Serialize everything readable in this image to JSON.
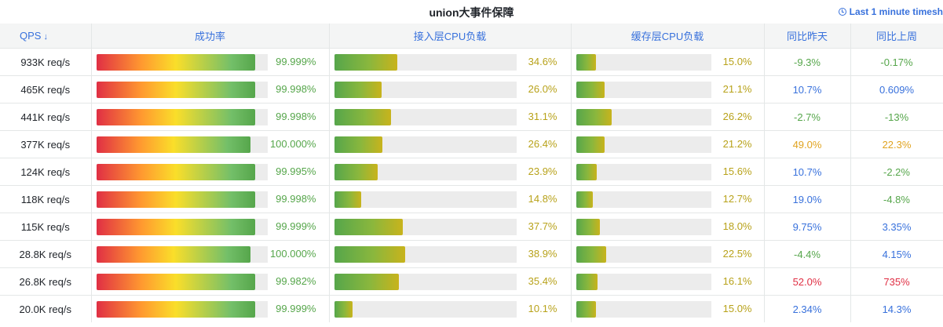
{
  "panel": {
    "title": "union大事件保障",
    "time_range": "Last 1 minute timesh"
  },
  "columns": {
    "qps": "QPS",
    "success": "成功率",
    "ingress_cpu": "接入层CPU负载",
    "cache_cpu": "缓存层CPU负载",
    "dod": "同比昨天",
    "wow": "同比上周"
  },
  "colors": {
    "accent": "#3871dc",
    "value_green": "#56a64b",
    "value_olive": "#b8a21a",
    "status_red": "#e02f44",
    "status_orange": "#e0a31f",
    "status_blue": "#3871dc",
    "status_green": "#56a64b"
  },
  "rows": [
    {
      "qps": "933K req/s",
      "success": "99.999%",
      "success_fill": 93,
      "ingress": "34.6%",
      "ingress_fill": 34.6,
      "cache": "15.0%",
      "cache_fill": 15.0,
      "dod": "-9.3%",
      "dod_color": "green",
      "wow": "-0.17%",
      "wow_color": "green"
    },
    {
      "qps": "465K req/s",
      "success": "99.998%",
      "success_fill": 93,
      "ingress": "26.0%",
      "ingress_fill": 26.0,
      "cache": "21.1%",
      "cache_fill": 21.1,
      "dod": "10.7%",
      "dod_color": "blue",
      "wow": "0.609%",
      "wow_color": "blue"
    },
    {
      "qps": "441K req/s",
      "success": "99.998%",
      "success_fill": 93,
      "ingress": "31.1%",
      "ingress_fill": 31.1,
      "cache": "26.2%",
      "cache_fill": 26.2,
      "dod": "-2.7%",
      "dod_color": "green",
      "wow": "-13%",
      "wow_color": "green"
    },
    {
      "qps": "377K req/s",
      "success": "100.000%",
      "success_fill": 90,
      "ingress": "26.4%",
      "ingress_fill": 26.4,
      "cache": "21.2%",
      "cache_fill": 21.2,
      "dod": "49.0%",
      "dod_color": "orange",
      "wow": "22.3%",
      "wow_color": "orange"
    },
    {
      "qps": "124K req/s",
      "success": "99.995%",
      "success_fill": 93,
      "ingress": "23.9%",
      "ingress_fill": 23.9,
      "cache": "15.6%",
      "cache_fill": 15.6,
      "dod": "10.7%",
      "dod_color": "blue",
      "wow": "-2.2%",
      "wow_color": "green"
    },
    {
      "qps": "118K req/s",
      "success": "99.998%",
      "success_fill": 93,
      "ingress": "14.8%",
      "ingress_fill": 14.8,
      "cache": "12.7%",
      "cache_fill": 12.7,
      "dod": "19.0%",
      "dod_color": "blue",
      "wow": "-4.8%",
      "wow_color": "green"
    },
    {
      "qps": "115K req/s",
      "success": "99.999%",
      "success_fill": 93,
      "ingress": "37.7%",
      "ingress_fill": 37.7,
      "cache": "18.0%",
      "cache_fill": 18.0,
      "dod": "9.75%",
      "dod_color": "blue",
      "wow": "3.35%",
      "wow_color": "blue"
    },
    {
      "qps": "28.8K req/s",
      "success": "100.000%",
      "success_fill": 90,
      "ingress": "38.9%",
      "ingress_fill": 38.9,
      "cache": "22.5%",
      "cache_fill": 22.5,
      "dod": "-4.4%",
      "dod_color": "green",
      "wow": "4.15%",
      "wow_color": "blue"
    },
    {
      "qps": "26.8K req/s",
      "success": "99.982%",
      "success_fill": 93,
      "ingress": "35.4%",
      "ingress_fill": 35.4,
      "cache": "16.1%",
      "cache_fill": 16.1,
      "dod": "52.0%",
      "dod_color": "red",
      "wow": "735%",
      "wow_color": "red"
    },
    {
      "qps": "20.0K req/s",
      "success": "99.999%",
      "success_fill": 93,
      "ingress": "10.1%",
      "ingress_fill": 10.1,
      "cache": "15.0%",
      "cache_fill": 15.0,
      "dod": "2.34%",
      "dod_color": "blue",
      "wow": "14.3%",
      "wow_color": "blue"
    }
  ]
}
